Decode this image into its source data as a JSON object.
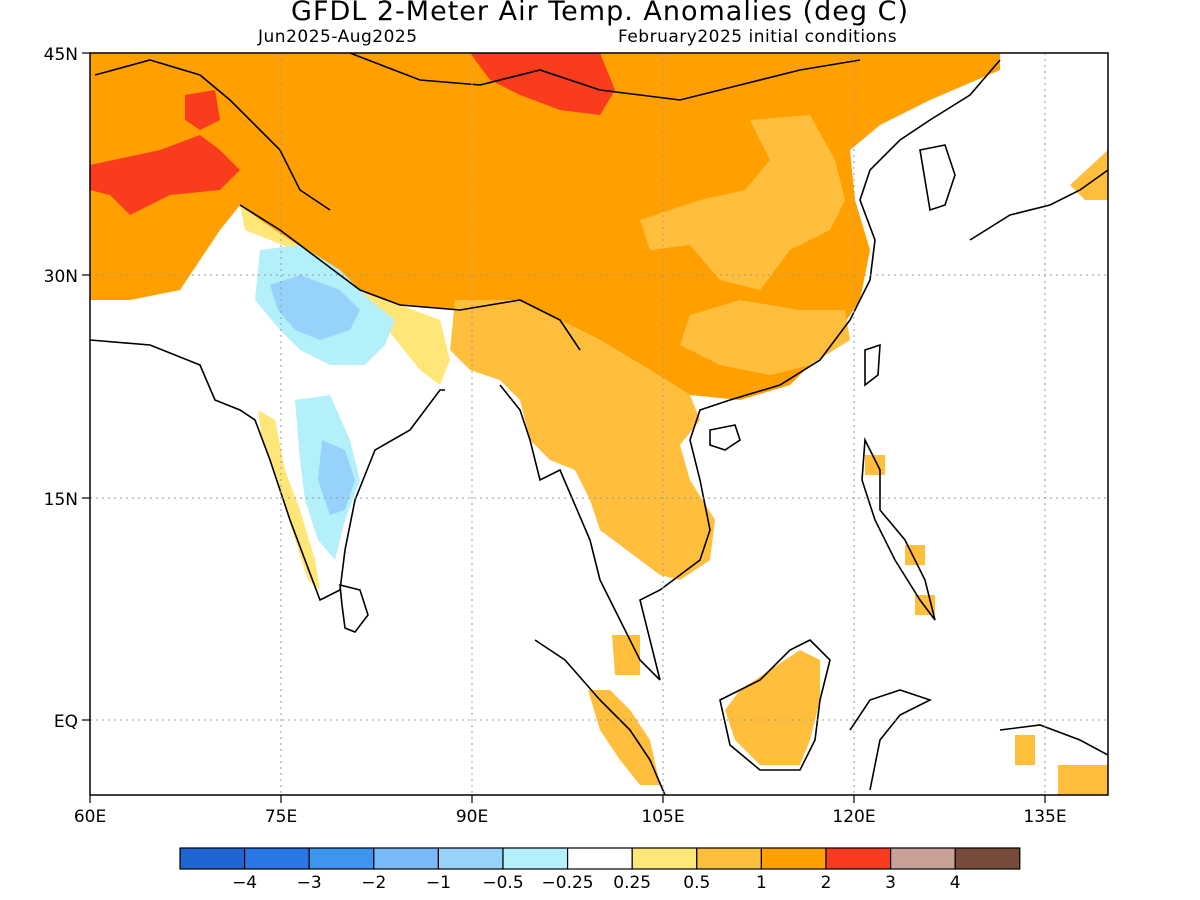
{
  "title": "GFDL 2-Meter Air Temp. Anomalies (deg C)",
  "period": "Jun2025-Aug2025",
  "init": "February2025 initial conditions",
  "lon_ticks": [
    "60E",
    "75E",
    "90E",
    "105E",
    "120E",
    "135E"
  ],
  "lat_ticks": [
    "45N",
    "30N",
    "15N",
    "EQ"
  ],
  "colorbar": {
    "colors": [
      "#1e64d2",
      "#2a78e8",
      "#3c96f0",
      "#78b9fa",
      "#96d2fa",
      "#b4f0fa",
      "#ffffff",
      "#ffe678",
      "#ffbe3c",
      "#ffa000",
      "#fa3c1e",
      "#c8a096",
      "#784b3c"
    ],
    "labels": [
      "-4",
      "-3",
      "-2",
      "-1",
      "-0.5",
      "-0.25",
      "0.25",
      "0.5",
      "1",
      "2",
      "3",
      "4"
    ]
  },
  "map": {
    "lon_range": [
      60,
      140
    ],
    "lat_range": [
      -5,
      45
    ],
    "grid": "dotted"
  }
}
